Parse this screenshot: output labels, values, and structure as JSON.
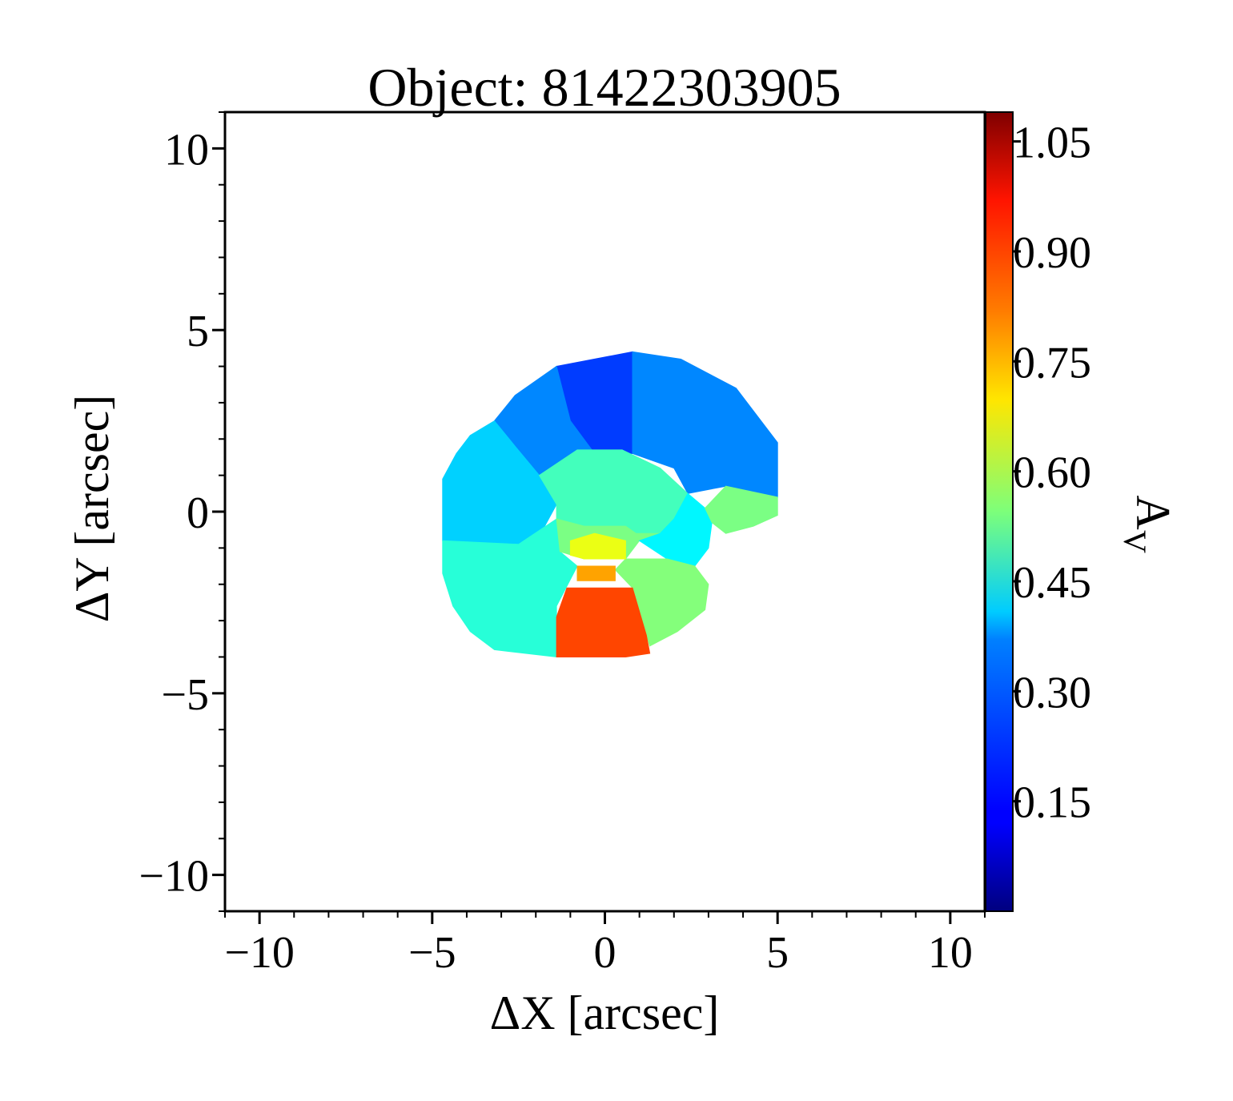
{
  "chart_data": {
    "type": "heatmap",
    "title": "Object: 81422303905",
    "xlabel": "ΔX [arcsec]",
    "ylabel": "ΔY [arcsec]",
    "xlim": [
      -11,
      11
    ],
    "ylim": [
      -11,
      11
    ],
    "x_ticks": [
      -10,
      -5,
      0,
      5,
      10
    ],
    "y_ticks": [
      -10,
      -5,
      0,
      5,
      10
    ],
    "x_tick_labels": [
      "−10",
      "−5",
      "0",
      "5",
      "10"
    ],
    "y_tick_labels": [
      "−10",
      "−5",
      "0",
      "5",
      "10"
    ],
    "grid": false,
    "colorbar": {
      "label": "A",
      "label_subscript": "V",
      "colormap": "jet",
      "range": [
        0.0,
        1.09
      ],
      "ticks": [
        0.15,
        0.3,
        0.45,
        0.6,
        0.75,
        0.9,
        1.05
      ],
      "tick_labels": [
        "0.15",
        "0.30",
        "0.45",
        "0.60",
        "0.75",
        "0.90",
        "1.05"
      ]
    },
    "regions": [
      {
        "name": "north-blue",
        "value": 0.2,
        "polygon": [
          [
            -1.4,
            4.0
          ],
          [
            0.8,
            4.4
          ],
          [
            0.8,
            1.6
          ],
          [
            -0.3,
            1.6
          ],
          [
            -1.0,
            2.5
          ]
        ]
      },
      {
        "name": "northwest-blue",
        "value": 0.28,
        "polygon": [
          [
            -3.2,
            2.5
          ],
          [
            -2.6,
            3.2
          ],
          [
            -1.4,
            4.0
          ],
          [
            -1.0,
            2.5
          ],
          [
            -0.3,
            1.6
          ],
          [
            -1.9,
            1.0
          ],
          [
            -2.6,
            1.8
          ]
        ]
      },
      {
        "name": "northeast-blue",
        "value": 0.28,
        "polygon": [
          [
            0.8,
            4.4
          ],
          [
            2.2,
            4.2
          ],
          [
            3.8,
            3.4
          ],
          [
            5.0,
            1.9
          ],
          [
            5.0,
            0.4
          ],
          [
            3.5,
            0.7
          ],
          [
            2.4,
            0.5
          ],
          [
            2.0,
            1.2
          ],
          [
            0.8,
            1.6
          ]
        ]
      },
      {
        "name": "west-cyan",
        "value": 0.36,
        "polygon": [
          [
            -4.7,
            -0.8
          ],
          [
            -4.7,
            0.9
          ],
          [
            -4.3,
            1.6
          ],
          [
            -3.9,
            2.1
          ],
          [
            -3.2,
            2.5
          ],
          [
            -2.6,
            1.8
          ],
          [
            -1.9,
            1.0
          ],
          [
            -1.4,
            0.2
          ],
          [
            -1.8,
            -0.5
          ],
          [
            -2.5,
            -0.9
          ]
        ]
      },
      {
        "name": "southwest-teal",
        "value": 0.45,
        "polygon": [
          [
            -4.7,
            -0.8
          ],
          [
            -4.7,
            -1.7
          ],
          [
            -4.4,
            -2.6
          ],
          [
            -3.9,
            -3.3
          ],
          [
            -3.2,
            -3.8
          ],
          [
            -1.4,
            -4.0
          ],
          [
            -1.4,
            -2.6
          ],
          [
            -0.8,
            -1.5
          ],
          [
            -1.3,
            -1.1
          ],
          [
            -1.4,
            -0.2
          ],
          [
            -2.5,
            -0.9
          ]
        ]
      },
      {
        "name": "center-cyan-green",
        "value": 0.48,
        "polygon": [
          [
            -1.4,
            0.2
          ],
          [
            -1.9,
            1.0
          ],
          [
            -0.8,
            1.7
          ],
          [
            0.5,
            1.7
          ],
          [
            1.6,
            1.2
          ],
          [
            2.4,
            0.5
          ],
          [
            2.0,
            -0.2
          ],
          [
            1.6,
            -0.6
          ],
          [
            0.9,
            -0.6
          ],
          [
            0.6,
            -0.4
          ],
          [
            -0.6,
            -0.4
          ],
          [
            -1.4,
            -0.2
          ]
        ]
      },
      {
        "name": "center-green",
        "value": 0.54,
        "polygon": [
          [
            -1.4,
            -0.2
          ],
          [
            -1.3,
            -1.1
          ],
          [
            -0.6,
            -1.3
          ],
          [
            0.6,
            -1.3
          ],
          [
            1.0,
            -0.8
          ],
          [
            1.6,
            -0.6
          ],
          [
            0.9,
            -0.6
          ],
          [
            0.6,
            -0.4
          ],
          [
            -0.6,
            -0.4
          ]
        ]
      },
      {
        "name": "east-cyan",
        "value": 0.4,
        "polygon": [
          [
            1.6,
            -0.6
          ],
          [
            2.0,
            -0.2
          ],
          [
            2.4,
            0.5
          ],
          [
            2.9,
            0.1
          ],
          [
            3.1,
            -0.3
          ],
          [
            3.0,
            -1.0
          ],
          [
            2.6,
            -1.5
          ],
          [
            1.8,
            -1.3
          ],
          [
            1.0,
            -0.8
          ]
        ]
      },
      {
        "name": "east-green",
        "value": 0.54,
        "polygon": [
          [
            2.9,
            0.1
          ],
          [
            3.5,
            0.7
          ],
          [
            5.0,
            0.4
          ],
          [
            5.0,
            -0.1
          ],
          [
            4.3,
            -0.4
          ],
          [
            3.5,
            -0.6
          ],
          [
            3.1,
            -0.3
          ]
        ]
      },
      {
        "name": "southeast-green",
        "value": 0.55,
        "polygon": [
          [
            0.6,
            -1.3
          ],
          [
            1.8,
            -1.3
          ],
          [
            2.6,
            -1.5
          ],
          [
            3.0,
            -2.0
          ],
          [
            2.9,
            -2.7
          ],
          [
            2.1,
            -3.3
          ],
          [
            1.3,
            -3.7
          ],
          [
            0.8,
            -2.1
          ],
          [
            0.3,
            -1.6
          ]
        ]
      },
      {
        "name": "center-yellow",
        "value": 0.66,
        "polygon": [
          [
            -1.0,
            -0.8
          ],
          [
            -0.3,
            -0.6
          ],
          [
            0.6,
            -0.8
          ],
          [
            0.6,
            -1.3
          ],
          [
            -0.6,
            -1.3
          ],
          [
            -1.0,
            -1.2
          ]
        ]
      },
      {
        "name": "center-orange",
        "value": 0.78,
        "polygon": [
          [
            -0.8,
            -1.5
          ],
          [
            0.3,
            -1.5
          ],
          [
            0.3,
            -1.9
          ],
          [
            -0.8,
            -1.9
          ]
        ]
      },
      {
        "name": "south-red",
        "value": 0.88,
        "polygon": [
          [
            -1.1,
            -2.1
          ],
          [
            0.8,
            -2.1
          ],
          [
            1.2,
            -3.4
          ],
          [
            1.3,
            -3.9
          ],
          [
            0.6,
            -4.0
          ],
          [
            -1.4,
            -4.0
          ],
          [
            -1.4,
            -2.9
          ]
        ]
      }
    ]
  }
}
